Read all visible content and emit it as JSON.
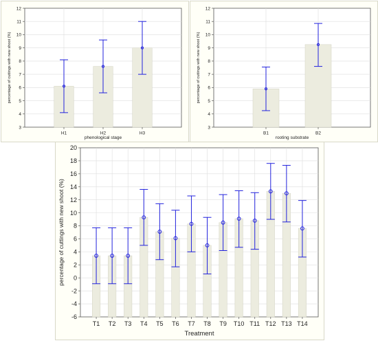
{
  "colors": {
    "bar_fill": "#ececdf",
    "bar_edge": "#d2d2c2",
    "marker": "#2222dd",
    "grid": "#dddddd",
    "axis": "#555555"
  },
  "chart_data": [
    {
      "type": "bar",
      "categories": [
        "H1",
        "H2",
        "H3"
      ],
      "values": [
        6.1,
        7.6,
        9.0
      ],
      "error_low": [
        4.1,
        5.6,
        7.0
      ],
      "error_high": [
        8.1,
        9.6,
        11.0
      ],
      "title": "",
      "xlabel": "phenological stage",
      "ylabel": "percentage of cuttings with new shoot (%)",
      "ylim": [
        3,
        12
      ],
      "yticks": [
        "3",
        "4",
        "5",
        "6",
        "7",
        "8",
        "9",
        "10",
        "11",
        "12"
      ],
      "grid": true
    },
    {
      "type": "bar",
      "categories": [
        "B1",
        "B2"
      ],
      "values": [
        5.9,
        9.25
      ],
      "error_low": [
        4.25,
        7.6
      ],
      "error_high": [
        7.55,
        10.85
      ],
      "title": "",
      "xlabel": "rooting substrate",
      "ylabel": "percentage of cuttings with new shoot (%)",
      "ylim": [
        3,
        12
      ],
      "yticks": [
        "3",
        "4",
        "5",
        "6",
        "7",
        "8",
        "9",
        "10",
        "11",
        "12"
      ],
      "grid": true
    },
    {
      "type": "bar",
      "categories": [
        "T1",
        "T2",
        "T3",
        "T4",
        "T5",
        "T6",
        "T7",
        "T8",
        "T9",
        "T10",
        "T11",
        "T12",
        "T13",
        "T14"
      ],
      "values": [
        3.4,
        3.4,
        3.4,
        9.3,
        7.1,
        6.1,
        8.3,
        5.0,
        8.5,
        9.1,
        8.8,
        13.3,
        13.0,
        7.6
      ],
      "error_low": [
        -0.9,
        -0.9,
        -0.9,
        5.0,
        2.8,
        1.7,
        4.0,
        0.6,
        4.2,
        4.7,
        4.4,
        9.0,
        8.6,
        3.2
      ],
      "error_high": [
        7.7,
        7.7,
        7.7,
        13.6,
        11.4,
        10.4,
        12.6,
        9.3,
        12.8,
        13.4,
        13.1,
        17.6,
        17.3,
        11.9
      ],
      "title": "",
      "xlabel": "Treatment",
      "ylabel": "percentage of cuttings with new shoot (%)",
      "ylim": [
        -6,
        20
      ],
      "yticks": [
        "-6",
        "-4",
        "-2",
        "0",
        "2",
        "4",
        "6",
        "8",
        "10",
        "12",
        "14",
        "16",
        "18",
        "20"
      ],
      "grid": true
    }
  ]
}
